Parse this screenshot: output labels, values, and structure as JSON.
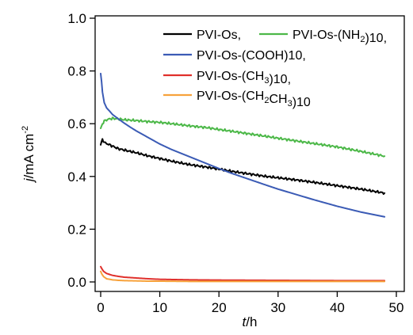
{
  "chart_data": {
    "type": "line",
    "xlabel": {
      "italic": "t",
      "rest": "/h"
    },
    "ylabel": {
      "italic": "j",
      "rest": "/mA cm",
      "sup": "-2"
    },
    "xlim": [
      0,
      50
    ],
    "ylim": [
      0,
      1.0
    ],
    "x_ticks": [
      0,
      10,
      20,
      30,
      40,
      50
    ],
    "y_ticks": [
      0.0,
      0.2,
      0.4,
      0.6,
      0.8,
      1.0
    ],
    "x_tick_labels": [
      "0",
      "10",
      "20",
      "30",
      "40",
      "50"
    ],
    "y_tick_labels": [
      "0.0",
      "0.2",
      "0.4",
      "0.6",
      "0.8",
      "1.0"
    ],
    "grid": false,
    "legend_position": "top-right",
    "series": [
      {
        "name": "PVI-Os,",
        "label_parts": [
          {
            "t": "PVI-Os,"
          }
        ],
        "color": "#000000",
        "x": [
          0,
          0.3,
          0.6,
          1,
          1.5,
          2,
          3,
          4,
          5,
          6,
          8,
          10,
          12,
          15,
          18,
          20,
          22,
          25,
          28,
          30,
          33,
          36,
          40,
          44,
          48
        ],
        "y": [
          0.52,
          0.54,
          0.53,
          0.525,
          0.52,
          0.515,
          0.505,
          0.5,
          0.495,
          0.49,
          0.478,
          0.468,
          0.458,
          0.445,
          0.435,
          0.428,
          0.42,
          0.41,
          0.4,
          0.395,
          0.387,
          0.378,
          0.365,
          0.352,
          0.337
        ]
      },
      {
        "name": "PVI-Os-(NH2)10,",
        "label_parts": [
          {
            "t": "PVI-Os-(NH"
          },
          {
            "t": "2",
            "sub": true
          },
          {
            "t": ")10,"
          }
        ],
        "color": "#4cb848",
        "x": [
          0,
          0.3,
          0.6,
          1,
          1.5,
          2,
          3,
          4,
          6,
          8,
          10,
          12,
          15,
          18,
          20,
          22,
          25,
          28,
          30,
          33,
          36,
          40,
          44,
          48
        ],
        "y": [
          0.58,
          0.6,
          0.61,
          0.615,
          0.618,
          0.62,
          0.618,
          0.615,
          0.612,
          0.608,
          0.605,
          0.6,
          0.592,
          0.585,
          0.578,
          0.572,
          0.562,
          0.552,
          0.545,
          0.535,
          0.525,
          0.512,
          0.495,
          0.477
        ]
      },
      {
        "name": "PVI-Os-(COOH)10,",
        "label_parts": [
          {
            "t": "PVI-Os-(COOH)10,"
          }
        ],
        "color": "#3b5bb5",
        "x": [
          0,
          0.15,
          0.3,
          0.6,
          1,
          1.5,
          2,
          3,
          4,
          5,
          6,
          8,
          10,
          12,
          15,
          18,
          20,
          22,
          25,
          28,
          30,
          33,
          36,
          40,
          44,
          48
        ],
        "y": [
          0.79,
          0.76,
          0.72,
          0.68,
          0.66,
          0.648,
          0.635,
          0.618,
          0.602,
          0.587,
          0.573,
          0.548,
          0.523,
          0.502,
          0.475,
          0.448,
          0.43,
          0.413,
          0.39,
          0.367,
          0.352,
          0.332,
          0.312,
          0.287,
          0.265,
          0.247
        ]
      },
      {
        "name": "PVI-Os-(CH3)10,",
        "label_parts": [
          {
            "t": "PVI-Os-(CH"
          },
          {
            "t": "3",
            "sub": true
          },
          {
            "t": ")10,"
          }
        ],
        "color": "#e0302b",
        "x": [
          0,
          0.2,
          0.5,
          1,
          2,
          3,
          4,
          6,
          8,
          10,
          15,
          20,
          30,
          40,
          48
        ],
        "y": [
          0.058,
          0.05,
          0.04,
          0.032,
          0.025,
          0.021,
          0.018,
          0.015,
          0.012,
          0.01,
          0.008,
          0.007,
          0.006,
          0.005,
          0.005
        ]
      },
      {
        "name": "PVI-Os-(CH2CH3)10",
        "label_parts": [
          {
            "t": "PVI-Os-(CH"
          },
          {
            "t": "2",
            "sub": true
          },
          {
            "t": "CH"
          },
          {
            "t": "3",
            "sub": true
          },
          {
            "t": ")10"
          }
        ],
        "color": "#f7a23b",
        "x": [
          0,
          0.2,
          0.5,
          1,
          2,
          3,
          4,
          6,
          8,
          10,
          15,
          20,
          30,
          40,
          48
        ],
        "y": [
          0.04,
          0.03,
          0.02,
          0.012,
          0.008,
          0.006,
          0.005,
          0.004,
          0.003,
          0.003,
          0.002,
          0.002,
          0.002,
          0.002,
          0.002
        ]
      }
    ]
  }
}
